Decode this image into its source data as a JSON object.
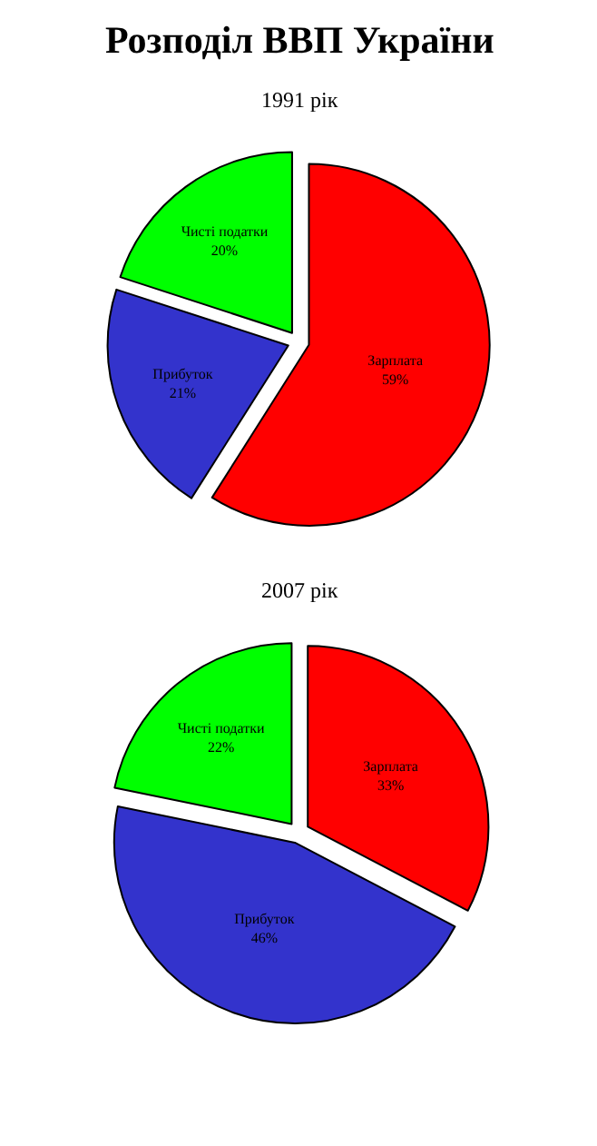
{
  "chart_data": [
    {
      "type": "pie",
      "title": "Розподіл ВВП України",
      "subtitle": "1991 рік",
      "categories": [
        "Зарплата",
        "Прибуток",
        "Чисті податки"
      ],
      "values": [
        59,
        21,
        20
      ],
      "value_labels": [
        "59%",
        "21%",
        "20%"
      ],
      "colors": [
        "#ff0000",
        "#3333cc",
        "#00ff00"
      ]
    },
    {
      "type": "pie",
      "title": "2007 рік",
      "categories": [
        "Зарплата",
        "Прибуток",
        "Чисті податки"
      ],
      "values": [
        33,
        46,
        22
      ],
      "value_labels": [
        "33%",
        "46%",
        "22%"
      ],
      "colors": [
        "#ff0000",
        "#3333cc",
        "#00ff00"
      ]
    }
  ]
}
